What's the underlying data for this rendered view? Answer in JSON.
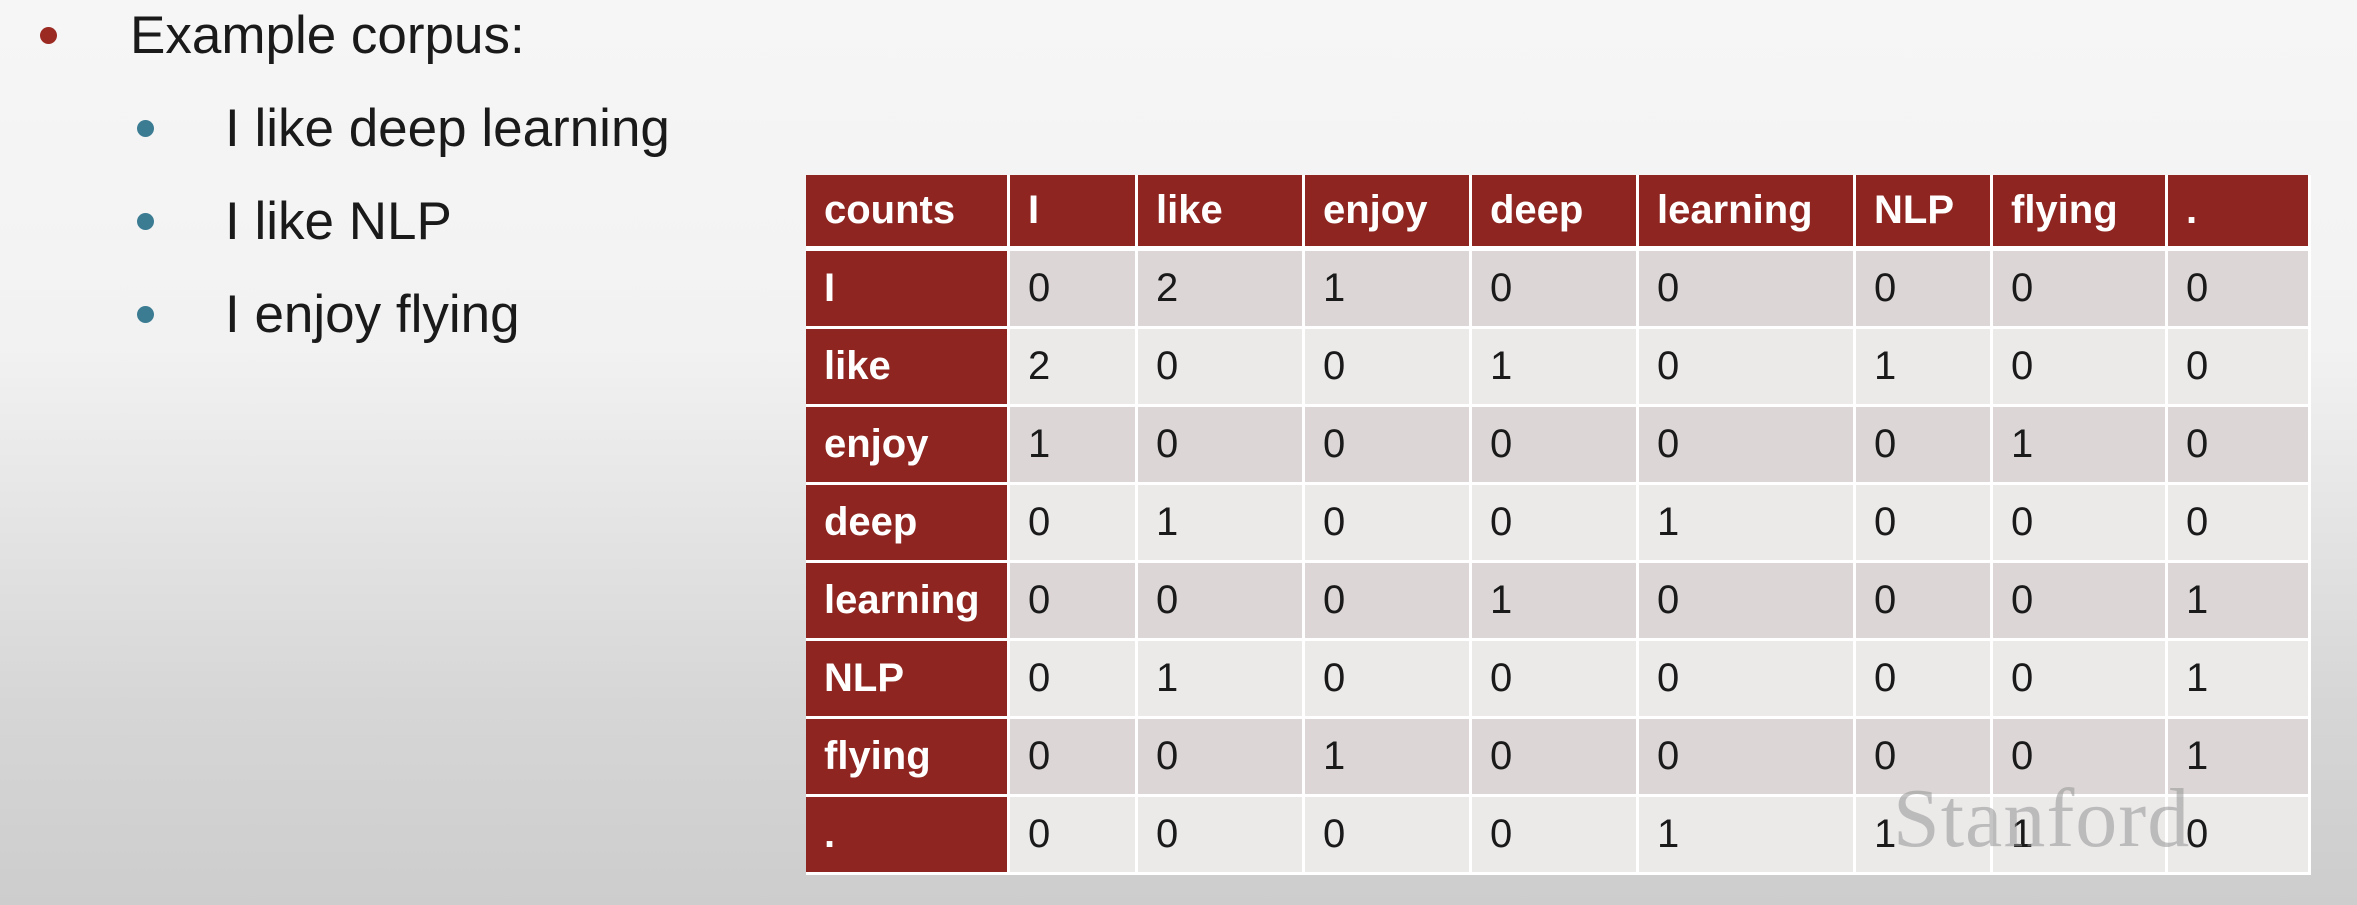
{
  "bullets": {
    "main": "Example corpus:",
    "items": [
      "I like deep learning",
      "I like NLP",
      "I enjoy flying"
    ]
  },
  "table": {
    "corner": "counts",
    "columns": [
      "I",
      "like",
      "enjoy",
      "deep",
      "learning",
      "NLP",
      "flying",
      "."
    ],
    "rows": [
      {
        "label": "I",
        "values": [
          "0",
          "2",
          "1",
          "0",
          "0",
          "0",
          "0",
          "0"
        ]
      },
      {
        "label": "like",
        "values": [
          "2",
          "0",
          "0",
          "1",
          "0",
          "1",
          "0",
          "0"
        ]
      },
      {
        "label": "enjoy",
        "values": [
          "1",
          "0",
          "0",
          "0",
          "0",
          "0",
          "1",
          "0"
        ]
      },
      {
        "label": "deep",
        "values": [
          "0",
          "1",
          "0",
          "0",
          "1",
          "0",
          "0",
          "0"
        ]
      },
      {
        "label": "learning",
        "values": [
          "0",
          "0",
          "0",
          "1",
          "0",
          "0",
          "0",
          "1"
        ]
      },
      {
        "label": "NLP",
        "values": [
          "0",
          "1",
          "0",
          "0",
          "0",
          "0",
          "0",
          "1"
        ]
      },
      {
        "label": "flying",
        "values": [
          "0",
          "0",
          "1",
          "0",
          "0",
          "0",
          "0",
          "1"
        ]
      },
      {
        "label": ".",
        "values": [
          "0",
          "0",
          "0",
          "0",
          "1",
          "1",
          "1",
          "0"
        ]
      }
    ]
  },
  "watermark": "Stanford",
  "colors": {
    "header": "#8e2520",
    "bullet_main": "#9b2a22",
    "bullet_sub": "#3b7c93"
  }
}
